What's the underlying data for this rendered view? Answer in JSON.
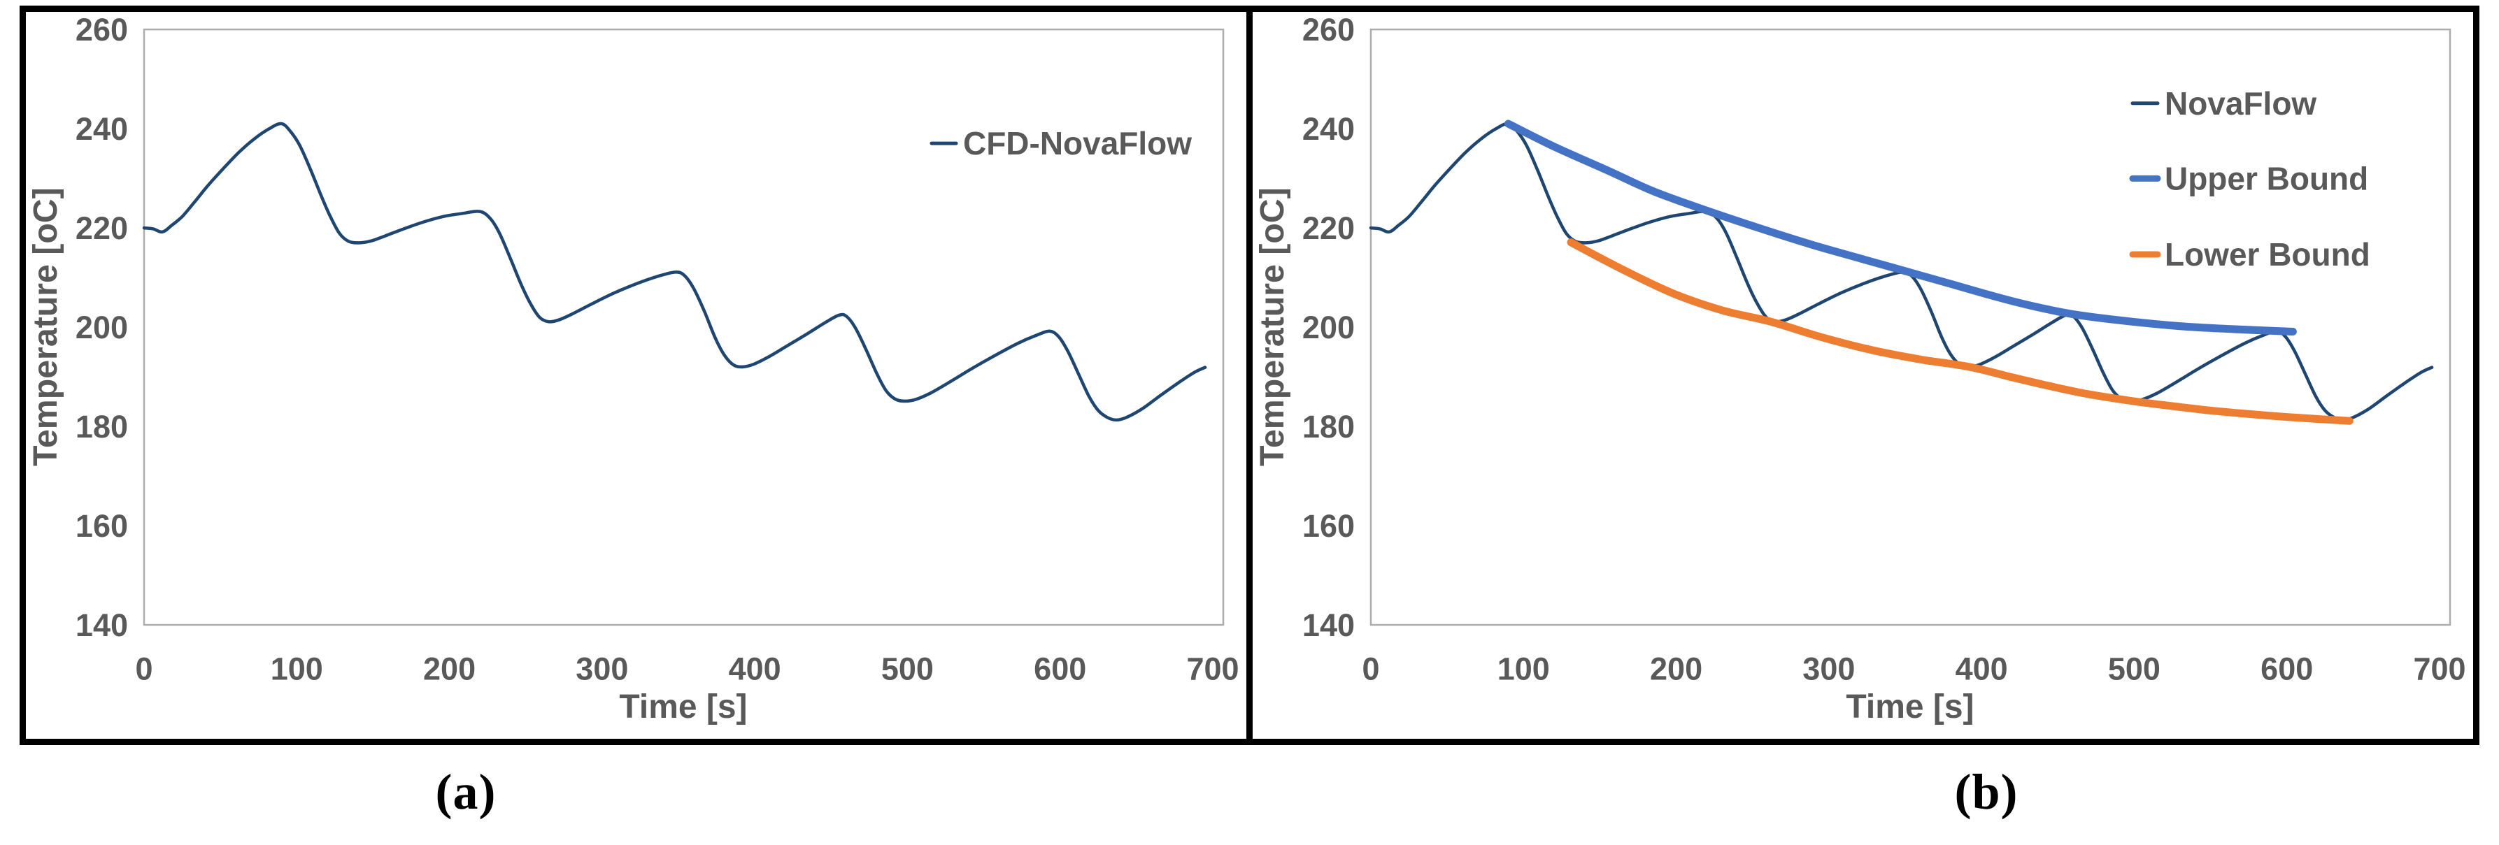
{
  "figure": {
    "captions": {
      "a": "(a)",
      "b": "(b)"
    }
  },
  "colors": {
    "novaflow": "#1E4670",
    "upper_bound": "#4472C4",
    "lower_bound": "#ED7D31",
    "axis_text": "#595959",
    "plot_border": "#ADADAD",
    "frame": "#000000"
  },
  "chart_data": [
    {
      "panel": "a",
      "type": "line",
      "title": "",
      "xlabel": "Time [s]",
      "ylabel": "Temperature [oC]",
      "xlim": [
        0,
        700
      ],
      "ylim": [
        140,
        260
      ],
      "xticks": [
        0,
        100,
        200,
        300,
        400,
        500,
        600,
        700
      ],
      "yticks": [
        140,
        160,
        180,
        200,
        220,
        240,
        260
      ],
      "grid": false,
      "legend_position": "upper-right",
      "legend": [
        {
          "label": "CFD-NovaFlow",
          "color": "#1E4670"
        }
      ],
      "series": [
        {
          "name": "CFD-NovaFlow",
          "color": "#1E4670",
          "width": 4.5,
          "points": [
            [
              0,
              220
            ],
            [
              6,
              219.8
            ],
            [
              12,
              219.2
            ],
            [
              18,
              220.5
            ],
            [
              25,
              222.3
            ],
            [
              33,
              225.2
            ],
            [
              42,
              228.6
            ],
            [
              52,
              232
            ],
            [
              62,
              235.2
            ],
            [
              72,
              237.9
            ],
            [
              82,
              240
            ],
            [
              90,
              241
            ],
            [
              96,
              239.4
            ],
            [
              102,
              236.6
            ],
            [
              109,
              231.8
            ],
            [
              116,
              226.5
            ],
            [
              122,
              222.3
            ],
            [
              128,
              218.9
            ],
            [
              134,
              217.3
            ],
            [
              141,
              217
            ],
            [
              149,
              217.4
            ],
            [
              158,
              218.4
            ],
            [
              170,
              219.8
            ],
            [
              183,
              221.2
            ],
            [
              196,
              222.3
            ],
            [
              208,
              222.9
            ],
            [
              220,
              223.3
            ],
            [
              227,
              221.8
            ],
            [
              233,
              218.8
            ],
            [
              240,
              213.8
            ],
            [
              247,
              208.6
            ],
            [
              253,
              204.8
            ],
            [
              259,
              202
            ],
            [
              265,
              201.1
            ],
            [
              272,
              201.5
            ],
            [
              282,
              202.9
            ],
            [
              294,
              204.8
            ],
            [
              308,
              206.9
            ],
            [
              322,
              208.7
            ],
            [
              336,
              210.2
            ],
            [
              348,
              211.1
            ],
            [
              354,
              210.4
            ],
            [
              360,
              207.8
            ],
            [
              367,
              203.2
            ],
            [
              374,
              197.9
            ],
            [
              380,
              194.4
            ],
            [
              386,
              192.4
            ],
            [
              392,
              192
            ],
            [
              399,
              192.5
            ],
            [
              409,
              194
            ],
            [
              421,
              196.2
            ],
            [
              434,
              198.6
            ],
            [
              446,
              200.9
            ],
            [
              455,
              202.4
            ],
            [
              460,
              202.2
            ],
            [
              466,
              199.8
            ],
            [
              473,
              195.4
            ],
            [
              480,
              190.6
            ],
            [
              486,
              187.2
            ],
            [
              492,
              185.5
            ],
            [
              498,
              185.1
            ],
            [
              505,
              185.4
            ],
            [
              515,
              186.7
            ],
            [
              528,
              189
            ],
            [
              543,
              191.8
            ],
            [
              558,
              194.4
            ],
            [
              572,
              196.7
            ],
            [
              584,
              198.3
            ],
            [
              593,
              199.2
            ],
            [
              599,
              198.1
            ],
            [
              605,
              195.2
            ],
            [
              612,
              190.6
            ],
            [
              619,
              186
            ],
            [
              625,
              183.2
            ],
            [
              631,
              181.8
            ],
            [
              637,
              181.3
            ],
            [
              644,
              181.9
            ],
            [
              654,
              183.6
            ],
            [
              666,
              186.3
            ],
            [
              678,
              188.9
            ],
            [
              688,
              190.9
            ],
            [
              695,
              191.9
            ]
          ]
        }
      ]
    },
    {
      "panel": "b",
      "type": "line",
      "title": "",
      "xlabel": "Time [s]",
      "ylabel": "Temperature [oC]",
      "xlim": [
        0,
        700
      ],
      "ylim": [
        140,
        260
      ],
      "xticks": [
        0,
        100,
        200,
        300,
        400,
        500,
        600,
        700
      ],
      "yticks": [
        140,
        160,
        180,
        200,
        220,
        240,
        260
      ],
      "grid": false,
      "legend_position": "upper-right",
      "legend": [
        {
          "label": "NovaFlow",
          "color": "#1E4670"
        },
        {
          "label": "Upper Bound",
          "color": "#4472C4"
        },
        {
          "label": "Lower Bound",
          "color": "#ED7D31"
        }
      ],
      "series": [
        {
          "name": "NovaFlow",
          "color": "#1E4670",
          "width": 4.5,
          "points": [
            [
              0,
              220
            ],
            [
              6,
              219.8
            ],
            [
              12,
              219.2
            ],
            [
              18,
              220.5
            ],
            [
              25,
              222.3
            ],
            [
              33,
              225.2
            ],
            [
              42,
              228.6
            ],
            [
              52,
              232
            ],
            [
              62,
              235.2
            ],
            [
              72,
              237.9
            ],
            [
              82,
              240
            ],
            [
              90,
              241
            ],
            [
              96,
              239.4
            ],
            [
              102,
              236.6
            ],
            [
              109,
              231.8
            ],
            [
              116,
              226.5
            ],
            [
              122,
              222.3
            ],
            [
              128,
              218.9
            ],
            [
              134,
              217.3
            ],
            [
              141,
              217
            ],
            [
              149,
              217.4
            ],
            [
              158,
              218.4
            ],
            [
              170,
              219.8
            ],
            [
              183,
              221.2
            ],
            [
              196,
              222.3
            ],
            [
              208,
              222.9
            ],
            [
              220,
              223.3
            ],
            [
              227,
              221.8
            ],
            [
              233,
              218.8
            ],
            [
              240,
              213.8
            ],
            [
              247,
              208.6
            ],
            [
              253,
              204.8
            ],
            [
              259,
              202
            ],
            [
              265,
              201.1
            ],
            [
              272,
              201.5
            ],
            [
              282,
              202.9
            ],
            [
              294,
              204.8
            ],
            [
              308,
              206.9
            ],
            [
              322,
              208.7
            ],
            [
              336,
              210.2
            ],
            [
              348,
              211.1
            ],
            [
              354,
              210.4
            ],
            [
              360,
              207.8
            ],
            [
              367,
              203.2
            ],
            [
              374,
              197.9
            ],
            [
              380,
              194.4
            ],
            [
              386,
              192.4
            ],
            [
              392,
              192
            ],
            [
              399,
              192.5
            ],
            [
              409,
              194
            ],
            [
              421,
              196.2
            ],
            [
              434,
              198.6
            ],
            [
              446,
              200.9
            ],
            [
              455,
              202.4
            ],
            [
              460,
              202.2
            ],
            [
              466,
              199.8
            ],
            [
              473,
              195.4
            ],
            [
              480,
              190.6
            ],
            [
              486,
              187.2
            ],
            [
              492,
              185.5
            ],
            [
              498,
              185.1
            ],
            [
              505,
              185.4
            ],
            [
              515,
              186.7
            ],
            [
              528,
              189
            ],
            [
              543,
              191.8
            ],
            [
              558,
              194.4
            ],
            [
              572,
              196.7
            ],
            [
              584,
              198.3
            ],
            [
              593,
              199.2
            ],
            [
              599,
              198.1
            ],
            [
              605,
              195.2
            ],
            [
              612,
              190.6
            ],
            [
              619,
              186
            ],
            [
              625,
              183.2
            ],
            [
              631,
              181.8
            ],
            [
              637,
              181.3
            ],
            [
              644,
              181.9
            ],
            [
              654,
              183.6
            ],
            [
              666,
              186.3
            ],
            [
              678,
              188.9
            ],
            [
              688,
              190.9
            ],
            [
              695,
              191.9
            ]
          ]
        },
        {
          "name": "Upper Bound",
          "color": "#4472C4",
          "width": 11,
          "points": [
            [
              90,
              241
            ],
            [
              120,
              236.4
            ],
            [
              155,
              231.6
            ],
            [
              185,
              227.4
            ],
            [
              220,
              223.5
            ],
            [
              255,
              219.9
            ],
            [
              288,
              216.7
            ],
            [
              320,
              213.9
            ],
            [
              350,
              211.3
            ],
            [
              380,
              208.7
            ],
            [
              405,
              206.5
            ],
            [
              430,
              204.5
            ],
            [
              458,
              202.7
            ],
            [
              490,
              201.4
            ],
            [
              530,
              200.2
            ],
            [
              565,
              199.6
            ],
            [
              604,
              199.1
            ]
          ]
        },
        {
          "name": "Lower Bound",
          "color": "#ED7D31",
          "width": 11,
          "points": [
            [
              131,
              217.1
            ],
            [
              165,
              211.6
            ],
            [
              198,
              206.8
            ],
            [
              230,
              203.4
            ],
            [
              262,
              201.1
            ],
            [
              295,
              198
            ],
            [
              328,
              195.4
            ],
            [
              360,
              193.5
            ],
            [
              392,
              192
            ],
            [
              420,
              189.9
            ],
            [
              445,
              188.1
            ],
            [
              470,
              186.5
            ],
            [
              497,
              185.2
            ],
            [
              522,
              184.2
            ],
            [
              550,
              183.2
            ],
            [
              575,
              182.5
            ],
            [
              600,
              181.9
            ],
            [
              620,
              181.5
            ],
            [
              641,
              181.1
            ]
          ]
        }
      ]
    }
  ]
}
